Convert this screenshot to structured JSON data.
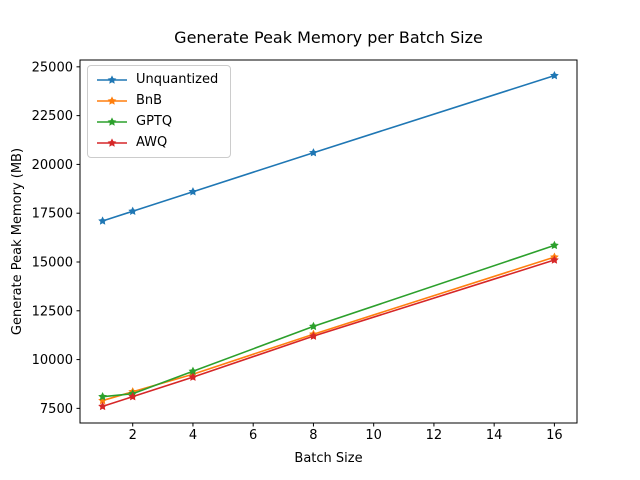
{
  "chart_data": {
    "type": "line",
    "title": "Generate Peak Memory per Batch Size",
    "xlabel": "Batch Size",
    "ylabel": "Generate Peak Memory (MB)",
    "x": [
      1,
      2,
      4,
      8,
      16
    ],
    "series": [
      {
        "name": "Unquantized",
        "color": "#1f77b4",
        "values": [
          17100,
          17600,
          18600,
          20600,
          24550
        ]
      },
      {
        "name": "BnB",
        "color": "#ff7f0e",
        "values": [
          7900,
          8350,
          9250,
          11300,
          15250
        ]
      },
      {
        "name": "GPTQ",
        "color": "#2ca02c",
        "values": [
          8100,
          8250,
          9400,
          11700,
          15850
        ]
      },
      {
        "name": "AWQ",
        "color": "#d62728",
        "values": [
          7600,
          8100,
          9100,
          11200,
          15100
        ]
      }
    ],
    "xticks": [
      2,
      4,
      6,
      8,
      10,
      12,
      14,
      16
    ],
    "yticks": [
      7500,
      10000,
      12500,
      15000,
      17500,
      20000,
      22500,
      25000
    ],
    "xlim": [
      0.25,
      16.75
    ],
    "ylim": [
      6750,
      25350
    ],
    "grid": false,
    "marker": "star",
    "legend_position": "upper left",
    "axis_color": "#000000",
    "background_color": "#ffffff"
  }
}
